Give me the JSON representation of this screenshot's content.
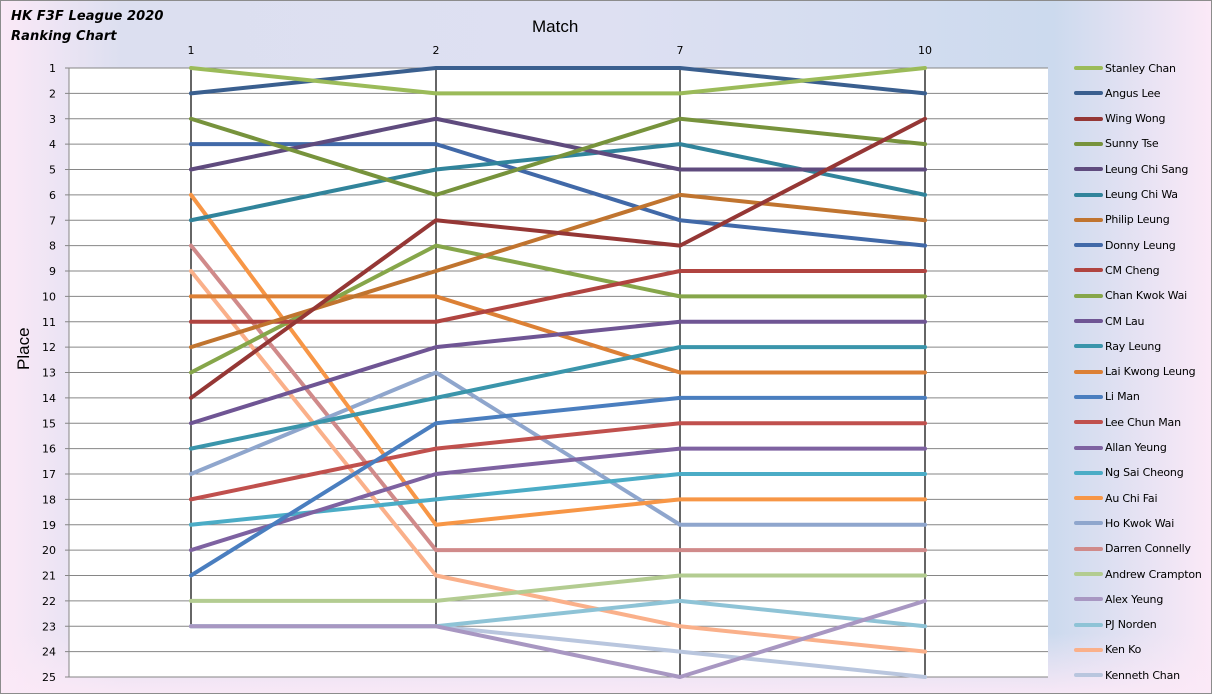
{
  "chart": {
    "title_line1": "HK F3F League 2020",
    "title_line2": "Ranking Chart",
    "x_axis_title": "Match",
    "y_axis_title": "Place"
  },
  "chart_data": {
    "type": "line",
    "title": "HK F3F League 2020 Ranking Chart",
    "xlabel": "Match",
    "ylabel": "Place",
    "x": [
      "1",
      "2",
      "7",
      "10"
    ],
    "ylim": [
      25,
      1
    ],
    "y_inverted": true,
    "y_ticks": [
      1,
      2,
      3,
      4,
      5,
      6,
      7,
      8,
      9,
      10,
      11,
      12,
      13,
      14,
      15,
      16,
      17,
      18,
      19,
      20,
      21,
      22,
      23,
      24,
      25
    ],
    "grid": "horizontal",
    "legend_position": "right",
    "series": [
      {
        "name": "Stanley Chan",
        "color": "#9bbb59",
        "values": [
          1,
          2,
          2,
          1
        ]
      },
      {
        "name": "Angus Lee",
        "color": "#3a5f8f",
        "values": [
          2,
          1,
          1,
          2
        ]
      },
      {
        "name": "Wing Wong",
        "color": "#953735",
        "values": [
          14,
          7,
          8,
          3
        ]
      },
      {
        "name": "Sunny Tse",
        "color": "#77933c",
        "values": [
          3,
          6,
          3,
          4
        ]
      },
      {
        "name": "Leung Chi Sang",
        "color": "#5f4b7e",
        "values": [
          5,
          3,
          5,
          5
        ]
      },
      {
        "name": "Leung Chi Wa",
        "color": "#31849b",
        "values": [
          7,
          5,
          4,
          6
        ]
      },
      {
        "name": "Philip Leung",
        "color": "#c0742f",
        "values": [
          12,
          9,
          6,
          7
        ]
      },
      {
        "name": "Donny Leung",
        "color": "#4169a8",
        "values": [
          4,
          4,
          7,
          8
        ]
      },
      {
        "name": "CM Cheng",
        "color": "#b04440",
        "values": [
          11,
          11,
          9,
          9
        ]
      },
      {
        "name": "Chan Kwok Wai",
        "color": "#86a64a",
        "values": [
          13,
          8,
          10,
          10
        ]
      },
      {
        "name": "CM Lau",
        "color": "#6f5594",
        "values": [
          15,
          12,
          11,
          11
        ]
      },
      {
        "name": "Ray Leung",
        "color": "#3a95ab",
        "values": [
          16,
          14,
          12,
          12
        ]
      },
      {
        "name": "Lai Kwong Leung",
        "color": "#dc8035",
        "values": [
          10,
          10,
          13,
          13
        ]
      },
      {
        "name": "Li Man",
        "color": "#4a7ebf",
        "values": [
          21,
          15,
          14,
          14
        ]
      },
      {
        "name": "Lee Chun Man",
        "color": "#c0504d",
        "values": [
          18,
          16,
          15,
          15
        ]
      },
      {
        "name": "Allan Yeung",
        "color": "#7e62a1",
        "values": [
          20,
          17,
          16,
          16
        ]
      },
      {
        "name": "Ng Sai Cheong",
        "color": "#4bacc6",
        "values": [
          19,
          18,
          17,
          17
        ]
      },
      {
        "name": "Au Chi Fai",
        "color": "#f79646",
        "values": [
          6,
          19,
          18,
          18
        ]
      },
      {
        "name": "Ho Kwok Wai",
        "color": "#8fa6cd",
        "values": [
          17,
          13,
          19,
          19
        ]
      },
      {
        "name": "Darren Connelly",
        "color": "#d08a8a",
        "values": [
          8,
          20,
          20,
          20
        ]
      },
      {
        "name": "Andrew Crampton",
        "color": "#b3cc91",
        "values": [
          22,
          22,
          21,
          21
        ]
      },
      {
        "name": "Alex Yeung",
        "color": "#a897c2",
        "values": [
          23,
          23,
          25,
          22
        ]
      },
      {
        "name": "PJ Norden",
        "color": "#8ec3d6",
        "values": [
          23,
          23,
          22,
          23
        ]
      },
      {
        "name": "Ken Ko",
        "color": "#fab08a",
        "values": [
          9,
          21,
          23,
          24
        ]
      },
      {
        "name": "Kenneth Chan",
        "color": "#b9c6de",
        "values": [
          23,
          23,
          24,
          25
        ]
      }
    ]
  }
}
